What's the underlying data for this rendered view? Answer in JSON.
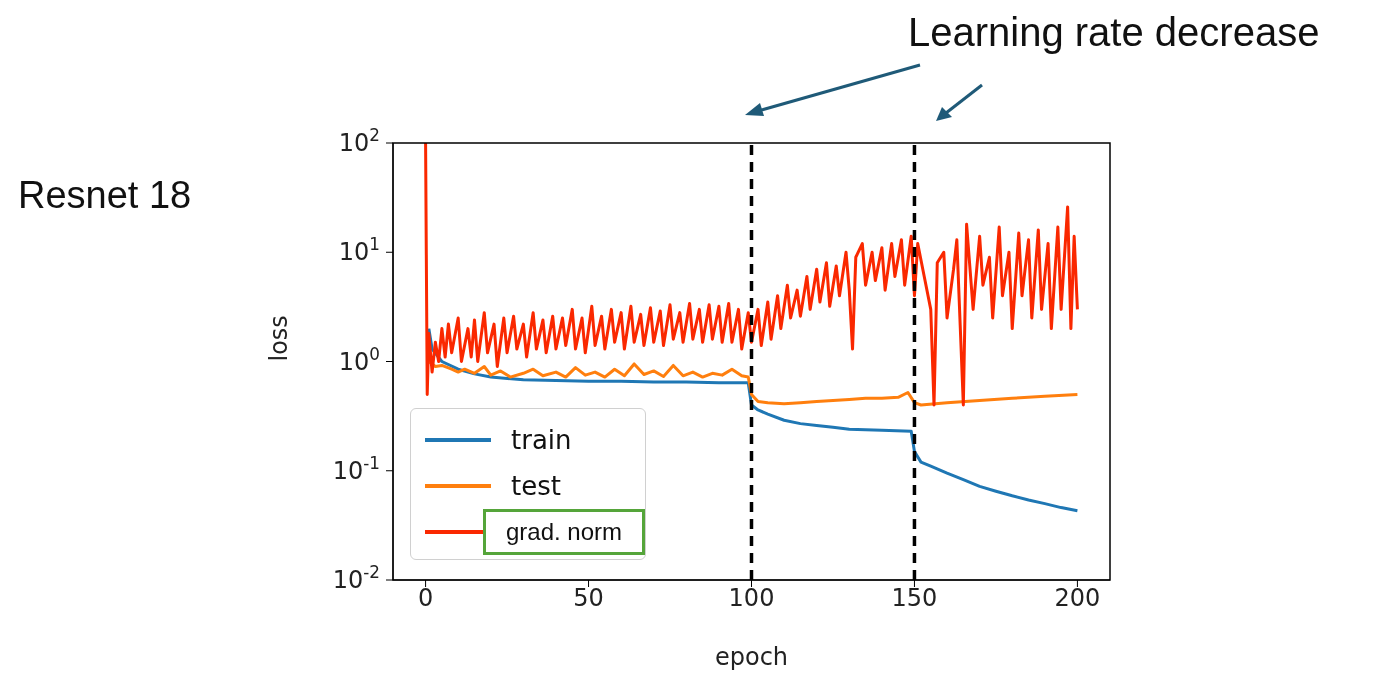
{
  "chart_data": {
    "type": "line",
    "xlabel": "epoch",
    "ylabel": "loss",
    "annotations": [
      "Resnet 18",
      "Learning rate decrease"
    ],
    "xlim": [
      -10,
      210
    ],
    "xticks": [
      0,
      50,
      100,
      150,
      200
    ],
    "ylim": [
      0.01,
      100
    ],
    "log": "y",
    "yticks": [
      {
        "value": 0.01,
        "label": "10$^{-2}$"
      },
      {
        "value": 0.1,
        "label": "10$^{-1}$"
      },
      {
        "value": 1,
        "label": "10$^{0}$"
      },
      {
        "value": 10,
        "label": "10$^{1}$"
      },
      {
        "value": 100,
        "label": "10$^{2}$"
      }
    ],
    "legend": "bottom left",
    "marker": "none",
    "line_style": "solid",
    "ref_lines": [
      {
        "axis": "x",
        "value": 100,
        "color": "#000000",
        "line_style": "dashed"
      },
      {
        "axis": "x",
        "value": 150,
        "color": "#000000",
        "line_style": "dashed"
      }
    ],
    "series": [
      {
        "name": "train",
        "color": "#1f77b4",
        "x": [
          1,
          2,
          5,
          10,
          15,
          20,
          30,
          40,
          50,
          60,
          70,
          80,
          90,
          99,
          100,
          102,
          105,
          110,
          115,
          120,
          125,
          130,
          140,
          149,
          150,
          152,
          155,
          160,
          165,
          170,
          175,
          180,
          185,
          190,
          195,
          200
        ],
        "values": [
          2.0,
          1.3,
          1.0,
          0.85,
          0.77,
          0.72,
          0.68,
          0.67,
          0.66,
          0.66,
          0.65,
          0.65,
          0.64,
          0.64,
          0.4,
          0.36,
          0.33,
          0.29,
          0.27,
          0.26,
          0.25,
          0.24,
          0.235,
          0.23,
          0.15,
          0.12,
          0.11,
          0.095,
          0.083,
          0.072,
          0.065,
          0.059,
          0.054,
          0.05,
          0.046,
          0.043
        ]
      },
      {
        "name": "test",
        "color": "#ff7f0e",
        "x": [
          1,
          3,
          5,
          8,
          10,
          12,
          15,
          18,
          20,
          23,
          26,
          30,
          33,
          36,
          40,
          43,
          46,
          49,
          52,
          55,
          58,
          61,
          64,
          67,
          70,
          73,
          76,
          79,
          82,
          85,
          88,
          91,
          94,
          97,
          99,
          100,
          102,
          105,
          110,
          115,
          120,
          125,
          130,
          135,
          140,
          145,
          148,
          150,
          152,
          160,
          170,
          180,
          190,
          200
        ],
        "values": [
          1.0,
          0.9,
          0.92,
          0.85,
          0.8,
          0.85,
          0.78,
          0.9,
          0.75,
          0.82,
          0.72,
          0.78,
          0.85,
          0.74,
          0.8,
          0.72,
          0.88,
          0.75,
          0.8,
          0.72,
          0.85,
          0.74,
          0.95,
          0.76,
          0.82,
          0.73,
          0.92,
          0.74,
          0.8,
          0.72,
          0.78,
          0.75,
          0.85,
          0.74,
          0.72,
          0.5,
          0.43,
          0.42,
          0.41,
          0.42,
          0.43,
          0.44,
          0.45,
          0.46,
          0.46,
          0.47,
          0.52,
          0.42,
          0.4,
          0.42,
          0.44,
          0.46,
          0.48,
          0.5
        ]
      },
      {
        "name": "grad. norm",
        "color": "#fa2800",
        "x": [
          0,
          0.5,
          1,
          2,
          3,
          4,
          5,
          6,
          7,
          8,
          10,
          11,
          13,
          14,
          15,
          16,
          18,
          19,
          21,
          22,
          24,
          25,
          27,
          28,
          30,
          31,
          33,
          34,
          36,
          37,
          39,
          40,
          42,
          43,
          45,
          46,
          48,
          49,
          51,
          52,
          54,
          55,
          57,
          58,
          60,
          61,
          63,
          64,
          66,
          67,
          69,
          70,
          72,
          73,
          75,
          76,
          78,
          79,
          81,
          82,
          84,
          85,
          87,
          88,
          90,
          91,
          93,
          94,
          96,
          97,
          99,
          100,
          102,
          103,
          105,
          106,
          108,
          109,
          111,
          112,
          114,
          115,
          117,
          118,
          120,
          121,
          123,
          124,
          126,
          127,
          129,
          130,
          131,
          132,
          134,
          135,
          137,
          138,
          140,
          141,
          143,
          144,
          146,
          147,
          149,
          150,
          151,
          153,
          155,
          156,
          157,
          159,
          160,
          162,
          163,
          165,
          166,
          168,
          170,
          171,
          173,
          174,
          176,
          177,
          179,
          180,
          182,
          183,
          185,
          186,
          188,
          189,
          191,
          192,
          194,
          195,
          197,
          198,
          199,
          200
        ],
        "values": [
          100,
          0.5,
          1.8,
          0.8,
          1.5,
          1.0,
          2.0,
          1.1,
          2.2,
          1.2,
          2.5,
          1.0,
          2.0,
          1.1,
          2.4,
          1.0,
          2.8,
          1.2,
          2.2,
          0.9,
          2.5,
          1.2,
          2.6,
          1.3,
          2.2,
          1.1,
          2.8,
          1.3,
          2.4,
          1.2,
          2.6,
          1.3,
          2.5,
          1.4,
          3.0,
          1.3,
          2.5,
          1.2,
          3.2,
          1.4,
          2.6,
          1.3,
          3.0,
          1.5,
          2.8,
          1.3,
          3.2,
          1.5,
          2.7,
          1.4,
          3.1,
          1.5,
          2.9,
          1.4,
          3.3,
          1.6,
          2.8,
          1.5,
          3.4,
          1.6,
          3.0,
          1.5,
          3.3,
          1.6,
          3.2,
          1.5,
          3.4,
          1.5,
          3.0,
          1.3,
          2.8,
          1.5,
          3.0,
          1.4,
          3.5,
          1.6,
          4.0,
          2.0,
          5.0,
          2.5,
          4.5,
          2.6,
          6.0,
          3.0,
          7.0,
          3.5,
          8.0,
          3.2,
          7.5,
          4.0,
          10,
          4.5,
          1.3,
          9,
          12,
          5,
          10,
          5.5,
          11,
          4.5,
          12,
          6,
          13,
          5,
          14,
          4,
          12,
          6,
          3,
          0.4,
          8,
          10,
          2.5,
          7,
          13,
          0.4,
          18,
          3,
          14,
          5,
          9,
          2.5,
          17,
          4,
          10,
          2,
          15,
          4,
          13,
          2.5,
          16,
          3,
          12,
          2,
          17,
          3,
          26,
          2,
          14,
          3
        ]
      }
    ]
  }
}
